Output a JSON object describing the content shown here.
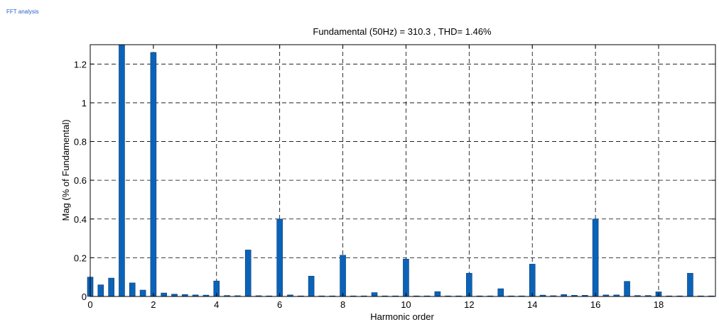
{
  "window": {
    "corner_label": "FFT analysis"
  },
  "colors": {
    "bar": "#0b63b8",
    "bar_edge": "#0a3d73",
    "grid": "#000000"
  },
  "chart_data": {
    "type": "bar",
    "title": "Fundamental (50Hz) = 310.3 , THD= 1.46%",
    "xlabel": "Harmonic order",
    "ylabel": "Mag (% of Fundamental)",
    "xlim": [
      0,
      19.8
    ],
    "ylim": [
      0,
      1.3
    ],
    "xticks": [
      0,
      2,
      4,
      6,
      8,
      10,
      12,
      14,
      16,
      18
    ],
    "yticks": [
      0,
      0.2,
      0.4,
      0.6,
      0.8,
      1,
      1.2
    ],
    "ytick_labels": [
      "0",
      "0.2",
      "0.4",
      "0.6",
      "0.8",
      "1",
      "1.2"
    ],
    "grid": true,
    "bar_width": 0.18,
    "x": [
      0,
      0.333,
      0.667,
      1,
      1.333,
      1.667,
      2,
      2.333,
      2.667,
      3,
      3.333,
      3.667,
      4,
      4.333,
      4.667,
      5,
      5.333,
      5.667,
      6,
      6.333,
      6.667,
      7,
      7.333,
      7.667,
      8,
      8.333,
      8.667,
      9,
      9.333,
      9.667,
      10,
      10.333,
      10.667,
      11,
      11.333,
      11.667,
      12,
      12.333,
      12.667,
      13,
      13.333,
      13.667,
      14,
      14.333,
      14.667,
      15,
      15.333,
      15.667,
      16,
      16.333,
      16.667,
      17,
      17.333,
      17.667,
      18,
      18.333,
      18.667,
      19,
      19.333,
      19.667
    ],
    "values": [
      0.1,
      0.06,
      0.095,
      1.3,
      0.07,
      0.033,
      1.26,
      0.018,
      0.012,
      0.01,
      0.008,
      0.007,
      0.08,
      0.005,
      0.004,
      0.24,
      0.004,
      0.003,
      0.4,
      0.008,
      0.003,
      0.105,
      0.003,
      0.003,
      0.213,
      0.003,
      0.003,
      0.02,
      0.003,
      0.003,
      0.193,
      0.003,
      0.003,
      0.025,
      0.003,
      0.003,
      0.12,
      0.003,
      0.003,
      0.04,
      0.003,
      0.003,
      0.167,
      0.007,
      0.004,
      0.01,
      0.006,
      0.006,
      0.4,
      0.008,
      0.008,
      0.078,
      0.005,
      0.005,
      0.024,
      0.003,
      0.003,
      0.12,
      0.003,
      0.003
    ]
  }
}
